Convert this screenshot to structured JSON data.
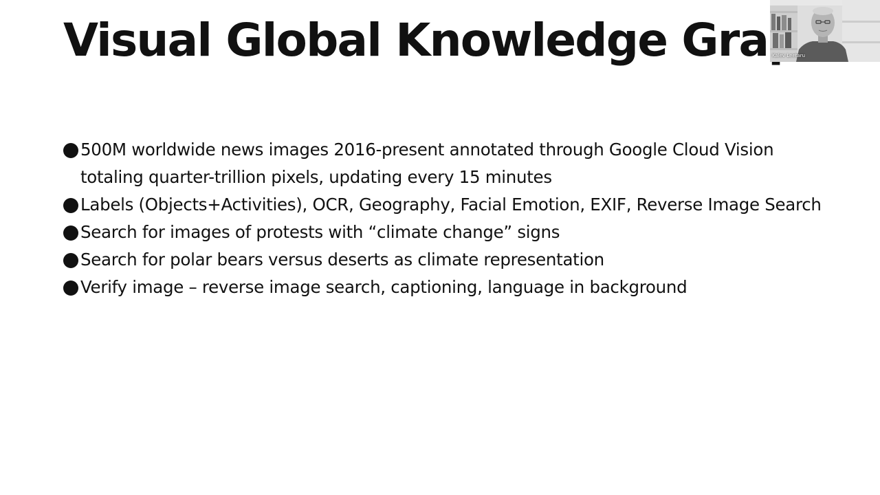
{
  "slide": {
    "title": "Visual Global Knowledge Graph",
    "bullets": [
      "500M worldwide news images 2016-present annotated through Google Cloud Vision totaling quarter-trillion pixels, updating every 15 minutes",
      "Labels (Objects+Activities), OCR, Geography, Facial Emotion, EXIF, Reverse Image Search",
      "Search for images of protests with “climate change” signs",
      "Search for polar bears versus deserts as climate representation",
      "Verify image – reverse image search, captioning, language in background"
    ]
  },
  "webcam": {
    "participant_name": "Kalev Leetaru"
  }
}
